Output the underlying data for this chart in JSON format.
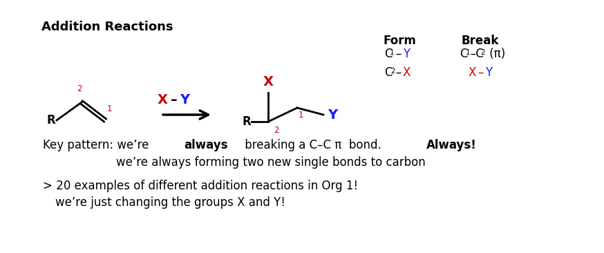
{
  "title": "Addition Reactions",
  "bg_color": "#ffffff",
  "black": "#000000",
  "red": "#cc0000",
  "blue": "#1a1aff",
  "form_header": "Form",
  "break_header": "Break",
  "key_line2": "we’re always forming two new single bonds to carbon",
  "key_line3": "> 20 examples of different addition reactions in Org 1!",
  "key_line4": "we’re just changing the groups X and Y!"
}
